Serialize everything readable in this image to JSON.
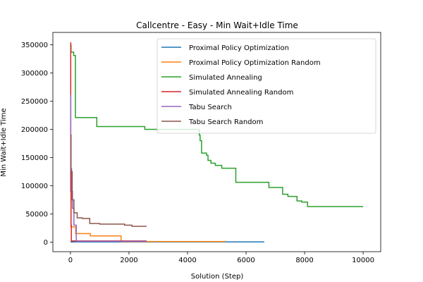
{
  "chart_data": {
    "type": "line",
    "title": "Callcentre - Easy - Min Wait+Idle Time",
    "xlabel": "Solution (Step)",
    "ylabel": "Min Wait+Idle Time",
    "xlim": [
      -600,
      10600
    ],
    "ylim": [
      -17000,
      372000
    ],
    "xticks": [
      0,
      2000,
      4000,
      6000,
      8000,
      10000
    ],
    "yticks": [
      0,
      50000,
      100000,
      150000,
      200000,
      250000,
      300000,
      350000
    ],
    "xtick_labels": [
      "0",
      "2000",
      "4000",
      "6000",
      "8000",
      "10000"
    ],
    "ytick_labels": [
      "0",
      "50000",
      "100000",
      "150000",
      "200000",
      "250000",
      "300000",
      "350000"
    ],
    "grid": false,
    "legend_position": "top-right",
    "series": [
      {
        "name": "Proximal Policy Optimization",
        "color": "#1f77b4",
        "x": [
          0,
          6620
        ],
        "y": [
          300,
          300
        ]
      },
      {
        "name": "Proximal Policy Optimization Random",
        "color": "#ff7f0e",
        "x": [
          0,
          20,
          20,
          180,
          180,
          680,
          680,
          1730,
          1730,
          5300
        ],
        "y": [
          190000,
          190000,
          27000,
          27000,
          15000,
          15000,
          11000,
          11000,
          1000,
          1000
        ]
      },
      {
        "name": "Simulated Annealing",
        "color": "#2ca02c",
        "x": [
          0,
          20,
          20,
          110,
          110,
          170,
          170,
          900,
          900,
          2540,
          2540,
          4400,
          4400,
          4430,
          4430,
          4480,
          4480,
          4650,
          4650,
          4700,
          4700,
          4800,
          4800,
          4950,
          4950,
          5170,
          5170,
          5650,
          5650,
          6780,
          6780,
          7250,
          7250,
          7430,
          7430,
          7740,
          7740,
          7900,
          7900,
          8100,
          8100,
          10000
        ],
        "y": [
          350000,
          350000,
          337000,
          337000,
          331000,
          331000,
          221000,
          221000,
          205000,
          205000,
          200000,
          200000,
          190000,
          190000,
          180000,
          180000,
          158000,
          158000,
          154000,
          154000,
          145000,
          145000,
          140000,
          140000,
          136000,
          136000,
          131000,
          131000,
          106000,
          106000,
          97000,
          97000,
          85000,
          85000,
          81000,
          81000,
          73000,
          73000,
          71000,
          71000,
          63000,
          63000
        ]
      },
      {
        "name": "Simulated Annealing Random",
        "color": "#d62728",
        "x": [
          0,
          10,
          10,
          20,
          20,
          30,
          30,
          2600
        ],
        "y": [
          354000,
          354000,
          90000,
          90000,
          30000,
          30000,
          2000,
          2000
        ]
      },
      {
        "name": "Tabu Search",
        "color": "#9467bd",
        "x": [
          0,
          10,
          10,
          40,
          40,
          70,
          70,
          120,
          120,
          200,
          200,
          2600
        ],
        "y": [
          260000,
          260000,
          130000,
          130000,
          90000,
          90000,
          60000,
          60000,
          30000,
          30000,
          1500,
          1500
        ]
      },
      {
        "name": "Tabu Search Random",
        "color": "#8c564b",
        "x": [
          0,
          20,
          20,
          60,
          60,
          120,
          120,
          230,
          230,
          400,
          400,
          660,
          660,
          1000,
          1000,
          1850,
          1850,
          2100,
          2100,
          2600
        ],
        "y": [
          190000,
          190000,
          125000,
          125000,
          75000,
          75000,
          52000,
          52000,
          43000,
          43000,
          42000,
          42000,
          33000,
          33000,
          32000,
          32000,
          30000,
          30000,
          28000,
          28000
        ]
      }
    ]
  }
}
